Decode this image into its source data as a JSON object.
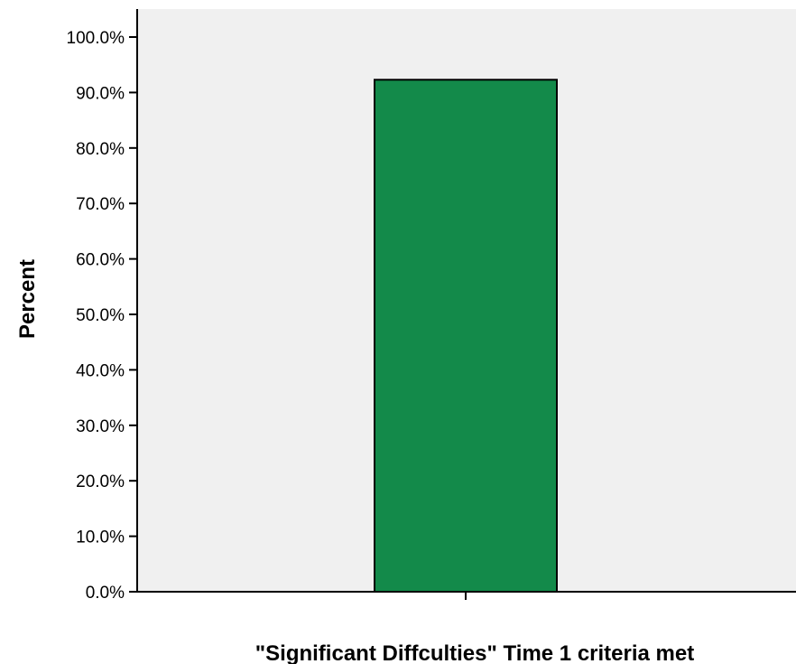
{
  "chart_data": {
    "type": "bar",
    "categories": [
      ""
    ],
    "values": [
      92.3
    ],
    "title": "",
    "xlabel": "\"Significant Diffculties\" Time 1 criteria met",
    "ylabel": "Percent",
    "ylim": [
      0,
      100
    ],
    "yticks": [
      0,
      10,
      20,
      30,
      40,
      50,
      60,
      70,
      80,
      90,
      100
    ],
    "ytick_labels": [
      "0.0%",
      "10.0%",
      "20.0%",
      "30.0%",
      "40.0%",
      "50.0%",
      "60.0%",
      "70.0%",
      "80.0%",
      "90.0%",
      "100.0%"
    ],
    "grid": false,
    "legend": "none",
    "colors": {
      "bar": "#138a4a",
      "bar_edge": "#000000",
      "plot_background": "#f0f0f0",
      "axis": "#000000"
    }
  }
}
